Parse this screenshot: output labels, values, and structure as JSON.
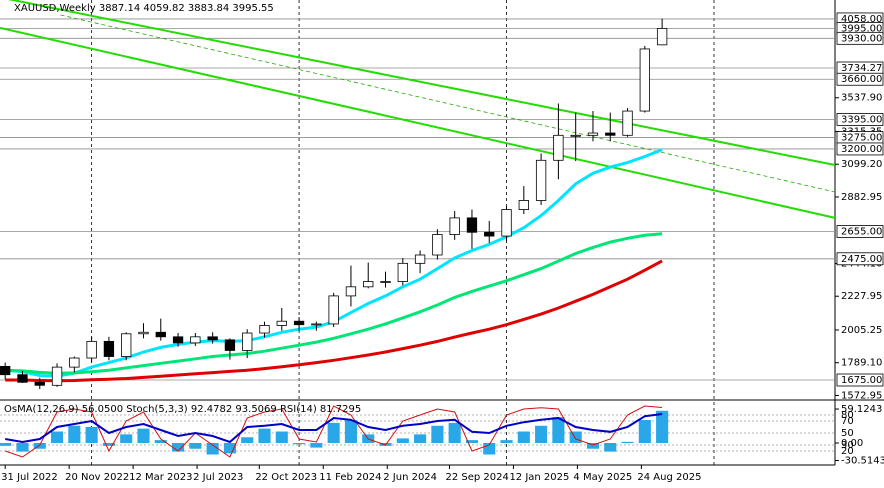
{
  "chart_data": [
    {
      "type": "candlestick",
      "title": "XAUUSD,Weekly 3887.14 4059.82 3883.84 3995.55",
      "xlim": [
        -0.3,
        48
      ],
      "ylim": [
        1543,
        4183
      ],
      "xticks": [
        {
          "value": 0,
          "label": "31 Jul 2022"
        },
        {
          "value": 3.7,
          "label": "20 Nov 2022"
        },
        {
          "value": 7.4,
          "label": "12 Mar 2023"
        },
        {
          "value": 11.1,
          "label": "2 Jul 2023"
        },
        {
          "value": 14.7,
          "label": "22 Oct 2023"
        },
        {
          "value": 18.4,
          "label": "11 Feb 2024"
        },
        {
          "value": 22.1,
          "label": "2 Jun 2024"
        },
        {
          "value": 25.7,
          "label": "22 Sep 2024"
        },
        {
          "value": 29.4,
          "label": "12 Jan 2025"
        },
        {
          "value": 33.1,
          "label": "4 May 2025"
        },
        {
          "value": 36.8,
          "label": "24 Aug 2025"
        }
      ],
      "separators": [
        5,
        17,
        29,
        41
      ],
      "yticks": [
        {
          "value": 3537.9,
          "label": "3537.90"
        },
        {
          "value": 3315.35,
          "label": "3315.35"
        },
        {
          "value": 3099.2,
          "label": "3099.20"
        },
        {
          "value": 2882.95,
          "label": "2882.95"
        },
        {
          "value": 2444.1,
          "label": "2444.10"
        },
        {
          "value": 2227.95,
          "label": "2227.95"
        },
        {
          "value": 2005.25,
          "label": "2005.25"
        },
        {
          "value": 1789.1,
          "label": "1789.10"
        },
        {
          "value": 1572.95,
          "label": "1572.95"
        }
      ],
      "levels": [
        {
          "value": 4058,
          "label": "4058.00"
        },
        {
          "value": 3995,
          "label": "3995.00"
        },
        {
          "value": 3930,
          "label": "3930.00"
        },
        {
          "value": 3734.27,
          "label": "3734.27"
        },
        {
          "value": 3660,
          "label": "3660.00"
        },
        {
          "value": 3395,
          "label": "3395.00"
        },
        {
          "value": 3275,
          "label": "3275.00"
        },
        {
          "value": 3200,
          "label": "3200.00"
        },
        {
          "value": 2655,
          "label": "2655.00"
        },
        {
          "value": 2475,
          "label": "2475.00"
        },
        {
          "value": 1675,
          "label": "1675.00"
        }
      ],
      "open": [
        1765,
        1710,
        1660,
        1640,
        1760,
        1820,
        1930,
        1830,
        1980,
        1990,
        1960,
        1920,
        1960,
        1940,
        1870,
        1985,
        2035,
        2063,
        2040,
        2045,
        2230,
        2290,
        2325,
        2325,
        2445,
        2500,
        2635,
        2745,
        2650,
        2625,
        2800,
        2860,
        3125,
        3290,
        3290,
        3305,
        3290,
        3450,
        3887.14
      ],
      "high": [
        1790,
        1735,
        1690,
        1785,
        1830,
        1960,
        1960,
        1990,
        2050,
        2080,
        1985,
        1985,
        1990,
        1950,
        2010,
        2060,
        2150,
        2090,
        2060,
        2250,
        2430,
        2450,
        2390,
        2480,
        2530,
        2670,
        2790,
        2800,
        2725,
        2820,
        2955,
        3170,
        3500,
        3440,
        3450,
        3440,
        3470,
        3880,
        4059.82
      ],
      "low": [
        1680,
        1655,
        1615,
        1630,
        1725,
        1790,
        1805,
        1805,
        1950,
        1935,
        1895,
        1900,
        1915,
        1810,
        1820,
        1955,
        2000,
        2000,
        2000,
        2025,
        2160,
        2280,
        2285,
        2300,
        2380,
        2470,
        2600,
        2540,
        2580,
        2590,
        2770,
        2830,
        3000,
        3120,
        3250,
        3250,
        3280,
        3440,
        3883.84
      ],
      "close": [
        1710,
        1660,
        1640,
        1760,
        1820,
        1930,
        1830,
        1980,
        1990,
        1960,
        1920,
        1960,
        1940,
        1870,
        1985,
        2035,
        2063,
        2040,
        2045,
        2230,
        2290,
        2325,
        2325,
        2445,
        2500,
        2635,
        2745,
        2650,
        2625,
        2800,
        2860,
        3125,
        3290,
        3290,
        3305,
        3290,
        3450,
        3860,
        3995.55
      ],
      "bull_color": "#ffffff",
      "bear_color": "#000000",
      "series": [
        {
          "color": "#00e5ff",
          "values": [
            1740,
            1730,
            1705,
            1700,
            1720,
            1760,
            1790,
            1820,
            1860,
            1890,
            1910,
            1925,
            1935,
            1930,
            1935,
            1960,
            1990,
            2010,
            2025,
            2060,
            2120,
            2180,
            2230,
            2290,
            2340,
            2410,
            2480,
            2530,
            2570,
            2620,
            2680,
            2760,
            2860,
            2970,
            3040,
            3080,
            3110,
            3150,
            3195
          ]
        },
        {
          "color": "#00e676",
          "values": [
            1740,
            1735,
            1725,
            1720,
            1722,
            1730,
            1740,
            1755,
            1770,
            1785,
            1800,
            1815,
            1830,
            1840,
            1850,
            1865,
            1885,
            1905,
            1925,
            1950,
            1980,
            2010,
            2045,
            2085,
            2125,
            2170,
            2220,
            2260,
            2295,
            2330,
            2370,
            2410,
            2460,
            2510,
            2550,
            2585,
            2610,
            2630,
            2640
          ]
        },
        {
          "color": "#e00000",
          "values": [
            1675,
            1675,
            1672,
            1670,
            1672,
            1676,
            1680,
            1685,
            1692,
            1700,
            1708,
            1716,
            1724,
            1732,
            1740,
            1750,
            1762,
            1775,
            1790,
            1805,
            1822,
            1840,
            1860,
            1882,
            1905,
            1930,
            1958,
            1985,
            2010,
            2040,
            2075,
            2110,
            2150,
            2195,
            2240,
            2290,
            2340,
            2400,
            2461
          ]
        }
      ],
      "trendlines": [
        {
          "color": "#22dd00",
          "x": [
            -0.3,
            48
          ],
          "y": [
            4200,
            3094
          ]
        },
        {
          "color": "#22dd00",
          "x": [
            -0.3,
            48
          ],
          "y": [
            3999,
            2745
          ]
        },
        {
          "color": "#22aa00",
          "dashed": true,
          "x": [
            3.2,
            48
          ],
          "y": [
            4084,
            2916
          ]
        }
      ]
    },
    {
      "type": "oscillator",
      "title": "OsMA(12,26,9) 56.0500 Stoch(5,3,3) 92.4782 93.5069 RSI(14) 81.7295",
      "ylim": [
        -34.8,
        69.6
      ],
      "yticks": [
        59.1243,
        {
          "value": 0,
          "label": "0.00"
        },
        -30.5143
      ],
      "y2lim": [
        0,
        100
      ],
      "y2ticks": [
        80,
        70,
        50,
        30,
        20
      ],
      "osma_color": "#2aa7e8",
      "osma": [
        -5,
        -15,
        -10,
        20,
        30,
        28,
        -5,
        15,
        25,
        5,
        -15,
        -10,
        -20,
        -18,
        10,
        25,
        20,
        -2,
        -8,
        35,
        40,
        15,
        -5,
        8,
        15,
        30,
        35,
        5,
        -20,
        5,
        20,
        30,
        45,
        20,
        -10,
        -15,
        2,
        40,
        56.05
      ],
      "series": [
        {
          "color": "#d01010",
          "axis": "y2",
          "values": [
            20,
            10,
            30,
            85,
            90,
            85,
            20,
            70,
            85,
            40,
            20,
            50,
            30,
            10,
            75,
            85,
            90,
            40,
            35,
            95,
            80,
            40,
            30,
            70,
            80,
            90,
            85,
            20,
            30,
            80,
            90,
            92,
            90,
            40,
            30,
            40,
            80,
            95,
            92.4782
          ]
        },
        {
          "color": "#0000c8",
          "axis": "y2",
          "values": [
            40,
            35,
            40,
            60,
            65,
            70,
            50,
            60,
            65,
            55,
            45,
            50,
            45,
            35,
            60,
            62,
            65,
            55,
            55,
            75,
            72,
            60,
            55,
            62,
            65,
            70,
            72,
            52,
            50,
            62,
            68,
            72,
            75,
            60,
            55,
            52,
            60,
            78,
            81.7295
          ]
        }
      ]
    }
  ]
}
